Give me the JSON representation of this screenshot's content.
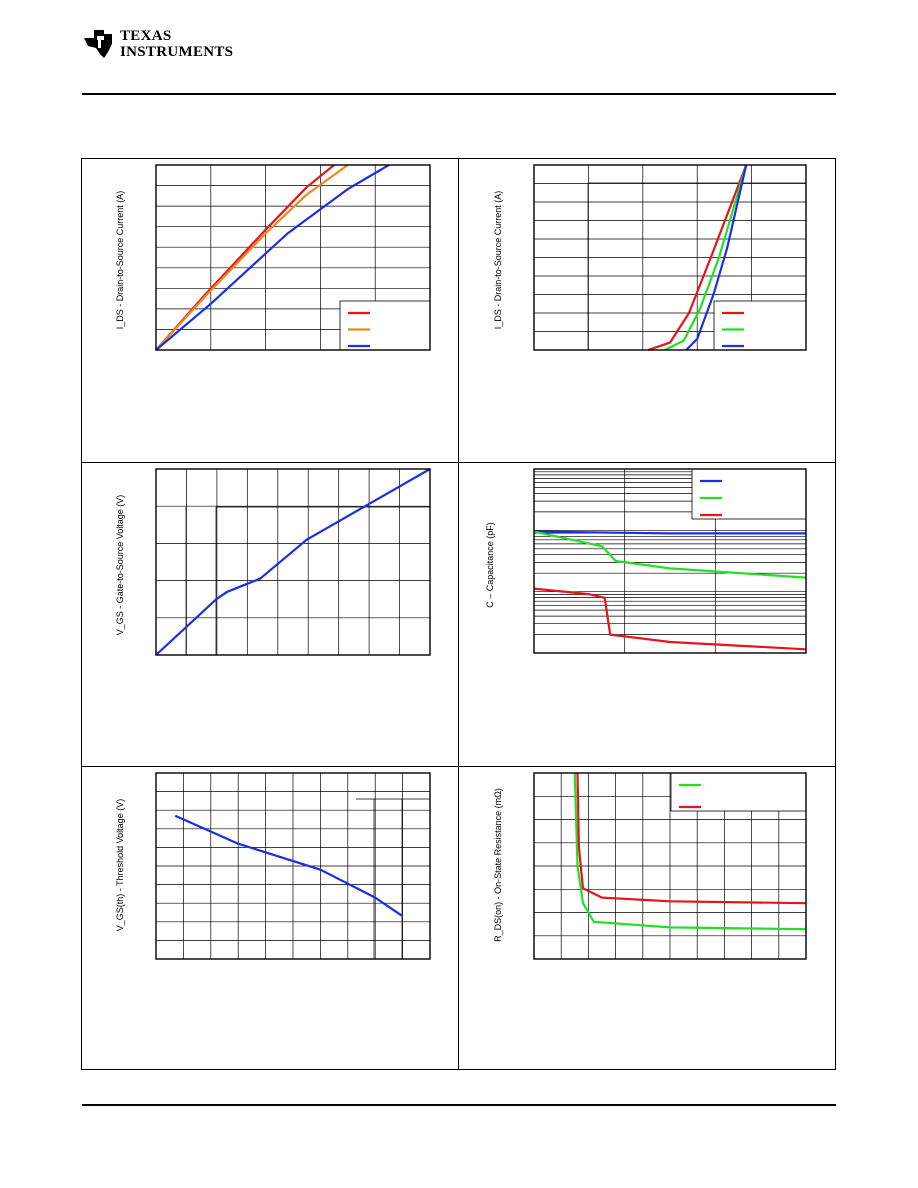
{
  "header": {
    "company_line1": "TEXAS",
    "company_line2": "INSTRUMENTS"
  },
  "colors": {
    "red": "#e8141c",
    "orange": "#e88a1c",
    "blue": "#1c2fe0",
    "green": "#22e022"
  },
  "chart_data": [
    {
      "type": "line",
      "ylabel": "I_DS - Drain-to-Source Current (A)",
      "x_range": [
        0,
        1
      ],
      "y_range": [
        0,
        1
      ],
      "legend_location": "bottom-right",
      "series": [
        {
          "color": "red",
          "x": [
            0,
            0.18,
            0.4,
            0.55,
            0.65
          ],
          "y": [
            0,
            0.3,
            0.65,
            0.88,
            1.0
          ]
        },
        {
          "color": "orange",
          "x": [
            0,
            0.18,
            0.4,
            0.55,
            0.7
          ],
          "y": [
            0,
            0.29,
            0.63,
            0.84,
            1.0
          ]
        },
        {
          "color": "blue",
          "x": [
            0,
            0.2,
            0.48,
            0.7,
            0.85
          ],
          "y": [
            0,
            0.25,
            0.63,
            0.87,
            1.0
          ]
        }
      ]
    },
    {
      "type": "line",
      "ylabel": "I_DS - Drain-to-Source Current (A)",
      "x_range": [
        0,
        1
      ],
      "y_range": [
        0,
        1
      ],
      "legend_location": "bottom-right",
      "series": [
        {
          "color": "red",
          "x": [
            0.42,
            0.5,
            0.57,
            0.65,
            0.78
          ],
          "y": [
            0,
            0.04,
            0.2,
            0.5,
            1.0
          ]
        },
        {
          "color": "green",
          "x": [
            0.48,
            0.55,
            0.61,
            0.68,
            0.78
          ],
          "y": [
            0,
            0.05,
            0.22,
            0.5,
            1.0
          ]
        },
        {
          "color": "blue",
          "x": [
            0.56,
            0.6,
            0.66,
            0.71,
            0.78
          ],
          "y": [
            0,
            0.06,
            0.3,
            0.55,
            1.0
          ]
        }
      ]
    },
    {
      "type": "line",
      "ylabel": "V_GS - Gate-to-Source Voltage (V)",
      "x_range": [
        0,
        1
      ],
      "y_range": [
        0,
        1
      ],
      "series": [
        {
          "color": "blue",
          "x": [
            0,
            0.22,
            0.26,
            0.38,
            0.55,
            1.0
          ],
          "y": [
            0,
            0.3,
            0.34,
            0.41,
            0.62,
            1.0
          ]
        }
      ]
    },
    {
      "type": "line",
      "ylabel": "C – Capacitance (pF)",
      "x_range": [
        0,
        1
      ],
      "y_range": [
        0,
        1
      ],
      "legend_location": "top-right",
      "series": [
        {
          "color": "blue",
          "x": [
            0,
            0.5,
            1.0
          ],
          "y": [
            0.66,
            0.65,
            0.65
          ]
        },
        {
          "color": "green",
          "x": [
            0,
            0.25,
            0.3,
            0.5,
            1.0
          ],
          "y": [
            0.66,
            0.58,
            0.5,
            0.46,
            0.41
          ]
        },
        {
          "color": "red",
          "x": [
            0,
            0.2,
            0.26,
            0.28,
            0.5,
            1.0
          ],
          "y": [
            0.35,
            0.32,
            0.3,
            0.1,
            0.06,
            0.02
          ]
        }
      ]
    },
    {
      "type": "line",
      "ylabel": "V_GS(th) - Threshold Voltage (V)",
      "x_range": [
        0,
        1
      ],
      "y_range": [
        0,
        1
      ],
      "series": [
        {
          "color": "blue",
          "x": [
            0.07,
            0.3,
            0.6,
            0.8,
            0.9
          ],
          "y": [
            0.77,
            0.62,
            0.48,
            0.33,
            0.23
          ]
        }
      ]
    },
    {
      "type": "line",
      "ylabel": "R_DS(on) - On-State Resistance (mΩ)",
      "x_range": [
        0,
        1
      ],
      "y_range": [
        0,
        1
      ],
      "legend_location": "top-right",
      "series": [
        {
          "color": "green",
          "x": [
            0.15,
            0.16,
            0.18,
            0.22,
            0.5,
            1.0
          ],
          "y": [
            1.0,
            0.5,
            0.3,
            0.2,
            0.17,
            0.16
          ]
        },
        {
          "color": "red",
          "x": [
            0.16,
            0.165,
            0.18,
            0.25,
            0.5,
            1.0
          ],
          "y": [
            1.0,
            0.6,
            0.38,
            0.33,
            0.31,
            0.3
          ]
        }
      ]
    }
  ]
}
